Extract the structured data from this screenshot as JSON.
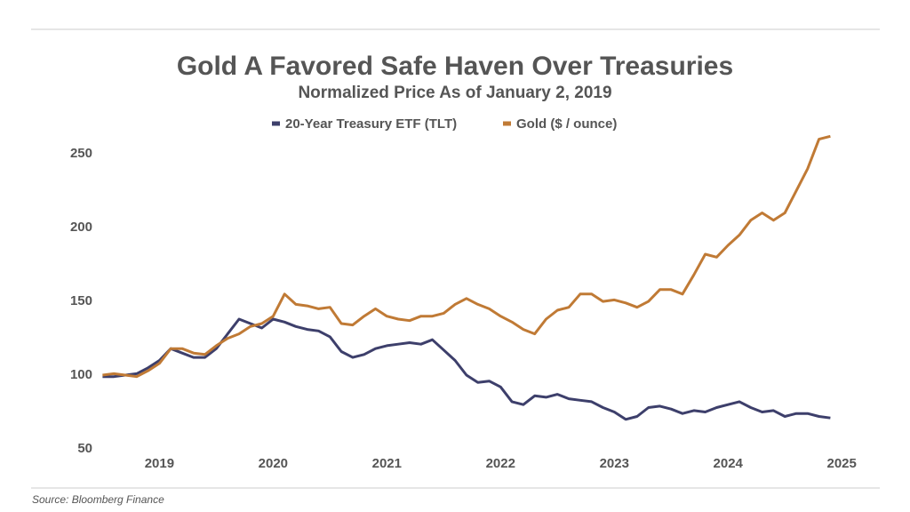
{
  "chart_data": {
    "type": "line",
    "title": "Gold A Favored Safe Haven Over Treasuries",
    "subtitle": "Normalized Price As of January 2, 2019",
    "source": "Source: Bloomberg Finance",
    "x": [
      2019.0,
      2019.1,
      2019.2,
      2019.3,
      2019.4,
      2019.5,
      2019.6,
      2019.7,
      2019.8,
      2019.9,
      2020.0,
      2020.1,
      2020.2,
      2020.3,
      2020.4,
      2020.5,
      2020.6,
      2020.7,
      2020.8,
      2020.9,
      2021.0,
      2021.1,
      2021.2,
      2021.3,
      2021.4,
      2021.5,
      2021.6,
      2021.7,
      2021.8,
      2021.9,
      2022.0,
      2022.1,
      2022.2,
      2022.3,
      2022.4,
      2022.5,
      2022.6,
      2022.7,
      2022.8,
      2022.9,
      2023.0,
      2023.1,
      2023.2,
      2023.3,
      2023.4,
      2023.5,
      2023.6,
      2023.7,
      2023.8,
      2023.9,
      2024.0,
      2024.1,
      2024.2,
      2024.3,
      2024.4,
      2024.5,
      2024.6,
      2024.7,
      2024.8,
      2024.9,
      2025.0,
      2025.1,
      2025.2,
      2025.3,
      2025.4
    ],
    "series": [
      {
        "name": "20-Year Treasury ETF (TLT)",
        "color": "#3d3f6b",
        "values": [
          99,
          99,
          100,
          101,
          105,
          110,
          118,
          115,
          112,
          112,
          118,
          128,
          138,
          135,
          132,
          138,
          136,
          133,
          131,
          130,
          126,
          116,
          112,
          114,
          118,
          120,
          121,
          122,
          121,
          124,
          117,
          110,
          100,
          95,
          96,
          92,
          82,
          80,
          86,
          85,
          87,
          84,
          83,
          82,
          78,
          75,
          70,
          72,
          78,
          79,
          77,
          74,
          76,
          75,
          78,
          80,
          82,
          78,
          75,
          76,
          72,
          74,
          74,
          72,
          71
        ]
      },
      {
        "name": "Gold ($ / ounce)",
        "color": "#c07a35",
        "values": [
          100,
          101,
          100,
          99,
          103,
          108,
          118,
          118,
          115,
          114,
          120,
          125,
          128,
          133,
          135,
          140,
          155,
          148,
          147,
          145,
          146,
          135,
          134,
          140,
          145,
          140,
          138,
          137,
          140,
          140,
          142,
          148,
          152,
          148,
          145,
          140,
          136,
          131,
          128,
          138,
          144,
          146,
          155,
          155,
          150,
          151,
          149,
          146,
          150,
          158,
          158,
          155,
          168,
          182,
          180,
          188,
          195,
          205,
          210,
          205,
          210,
          225,
          240,
          260,
          262
        ]
      }
    ],
    "xlim": [
      2018.95,
      2025.6
    ],
    "ylim": [
      50,
      270
    ],
    "xticks": [
      {
        "value": 2019.5,
        "label": "2019"
      },
      {
        "value": 2020.5,
        "label": "2020"
      },
      {
        "value": 2021.5,
        "label": "2021"
      },
      {
        "value": 2022.5,
        "label": "2022"
      },
      {
        "value": 2023.5,
        "label": "2023"
      },
      {
        "value": 2024.5,
        "label": "2024"
      },
      {
        "value": 2025.5,
        "label": "2025"
      }
    ],
    "yticks": [
      50,
      100,
      150,
      200,
      250
    ],
    "grid": false
  }
}
